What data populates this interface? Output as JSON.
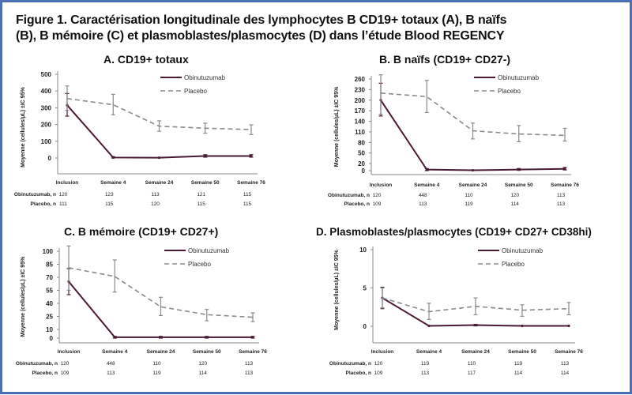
{
  "figure": {
    "title_line1": "Figure 1. Caractérisation longitudinale des lymphocytes B CD19+ totaux (A), B naïfs",
    "title_line2": "(B), B mémoire (C) et plasmoblastes/plasmocytes (D) dans l’étude Blood REGENCY",
    "border_color": "#4a6fb3"
  },
  "chart_data": [
    {
      "id": "A",
      "type": "line",
      "title": "A. CD19+ totaux",
      "ylabel": "Moyenne (cellules/µL) ±IC 95%",
      "xlabel": "",
      "categories": [
        "Inclusion",
        "Semaine 4",
        "Semaine 24",
        "Semaine 50",
        "Semaine 76"
      ],
      "yticks": [
        0,
        100,
        200,
        300,
        400,
        500
      ],
      "ylim": [
        -100,
        500
      ],
      "grid": false,
      "legend": "top-right",
      "series": [
        {
          "name": "Obinutuzumab",
          "style": "solid",
          "color": "#4a1a35",
          "values": [
            315,
            3,
            2,
            12,
            12
          ],
          "ci_low": [
            250,
            0,
            0,
            5,
            5
          ],
          "ci_high": [
            385,
            8,
            5,
            20,
            20
          ]
        },
        {
          "name": "Placebo",
          "style": "dashed",
          "color": "#8a8a8a",
          "values": [
            355,
            318,
            190,
            178,
            170
          ],
          "ci_low": [
            285,
            258,
            160,
            148,
            140
          ],
          "ci_high": [
            430,
            380,
            222,
            208,
            198
          ]
        }
      ],
      "n_table": {
        "rows": [
          {
            "label": "Obinutuzumab, n",
            "values": [
              "120",
              "123",
              "113",
              "121",
              "115"
            ]
          },
          {
            "label": "Placebo, n",
            "values": [
              "111",
              "115",
              "120",
              "115",
              "115"
            ]
          }
        ]
      }
    },
    {
      "id": "B",
      "type": "line",
      "title": "B. B naïfs (CD19+ CD27-)",
      "ylabel": "Moyenne (cellules/µL) ±IC 95%",
      "xlabel": "",
      "categories": [
        "Inclusion",
        "Semaine 4",
        "Semaine 24",
        "Semaine 50",
        "Semaine 76"
      ],
      "yticks": [
        0,
        20,
        50,
        80,
        110,
        140,
        170,
        200,
        230,
        260
      ],
      "ylim": [
        -10,
        270
      ],
      "grid": false,
      "legend": "top-right",
      "series": [
        {
          "name": "Obinutuzumab",
          "style": "solid",
          "color": "#4a1a35",
          "values": [
            200,
            3,
            1,
            3,
            5
          ],
          "ci_low": [
            155,
            0,
            0,
            1,
            2
          ],
          "ci_high": [
            248,
            6,
            3,
            6,
            9
          ]
        },
        {
          "name": "Placebo",
          "style": "dashed",
          "color": "#8a8a8a",
          "values": [
            220,
            210,
            113,
            104,
            100
          ],
          "ci_low": [
            160,
            165,
            90,
            82,
            84
          ],
          "ci_high": [
            272,
            256,
            135,
            128,
            120
          ]
        }
      ],
      "n_table": {
        "rows": [
          {
            "label": "Obinutuzumab, n",
            "values": [
              "120",
              "448",
              "110",
              "120",
              "113"
            ]
          },
          {
            "label": "Placebo, n",
            "values": [
              "109",
              "113",
              "119",
              "114",
              "113"
            ]
          }
        ]
      }
    },
    {
      "id": "C",
      "type": "line",
      "title": "C. B mémoire (CD19+ CD27+)",
      "ylabel": "Moyenne (cellules/µL) ±IC 95%",
      "xlabel": "",
      "categories": [
        "Inclusion",
        "Semaine 4",
        "Semaine 24",
        "Semaine 50",
        "Semaine 76"
      ],
      "yticks": [
        0,
        10,
        25,
        40,
        55,
        70,
        85,
        100
      ],
      "ylim": [
        -5,
        110
      ],
      "grid": false,
      "legend": "top-right",
      "series": [
        {
          "name": "Obinutuzumab",
          "style": "solid",
          "color": "#4a1a35",
          "values": [
            65,
            1,
            1,
            1,
            1
          ],
          "ci_low": [
            50,
            0,
            0,
            0,
            0
          ],
          "ci_high": [
            80,
            2,
            2,
            2,
            2
          ]
        },
        {
          "name": "Placebo",
          "style": "dashed",
          "color": "#8a8a8a",
          "values": [
            81,
            71,
            36,
            27,
            24
          ],
          "ci_low": [
            55,
            53,
            26,
            20,
            19
          ],
          "ci_high": [
            106,
            90,
            47,
            33,
            29
          ]
        }
      ],
      "n_table": {
        "rows": [
          {
            "label": "Obinutuzumab, n",
            "values": [
              "120",
              "448",
              "110",
              "120",
              "113"
            ]
          },
          {
            "label": "Placebo, n",
            "values": [
              "109",
              "113",
              "119",
              "114",
              "113"
            ]
          }
        ]
      }
    },
    {
      "id": "D",
      "type": "line",
      "title": "D. Plasmoblastes/plasmocytes (CD19+ CD27+ CD38hi)",
      "ylabel": "Moyenne (cellules/µL) ±IC 95%",
      "xlabel": "",
      "categories": [
        "Inclusion",
        "Semaine 4",
        "Semaine 24",
        "Semaine 50",
        "Semaine 76"
      ],
      "yticks": [
        0,
        5,
        10
      ],
      "ylim": [
        -2,
        10
      ],
      "grid": false,
      "legend": "top-right",
      "series": [
        {
          "name": "Obinutuzumab",
          "style": "solid",
          "color": "#4a1a35",
          "values": [
            3.7,
            0.05,
            0.15,
            0.05,
            0.05
          ],
          "ci_low": [
            2.3,
            0,
            0.05,
            0,
            0
          ],
          "ci_high": [
            5.1,
            0.1,
            0.25,
            0.1,
            0.1
          ]
        },
        {
          "name": "Placebo",
          "style": "dashed",
          "color": "#8a8a8a",
          "values": [
            3.7,
            1.9,
            2.6,
            2.1,
            2.3
          ],
          "ci_low": [
            2.4,
            0.9,
            1.5,
            1.3,
            1.5
          ],
          "ci_high": [
            5.0,
            3.0,
            3.7,
            2.8,
            3.1
          ]
        }
      ],
      "n_table": {
        "rows": [
          {
            "label": "Obinutuzumab, n",
            "values": [
              "120",
              "119",
              "110",
              "119",
              "113"
            ]
          },
          {
            "label": "Placebo, n",
            "values": [
              "109",
              "113",
              "117",
              "114",
              "114"
            ]
          }
        ]
      }
    }
  ]
}
